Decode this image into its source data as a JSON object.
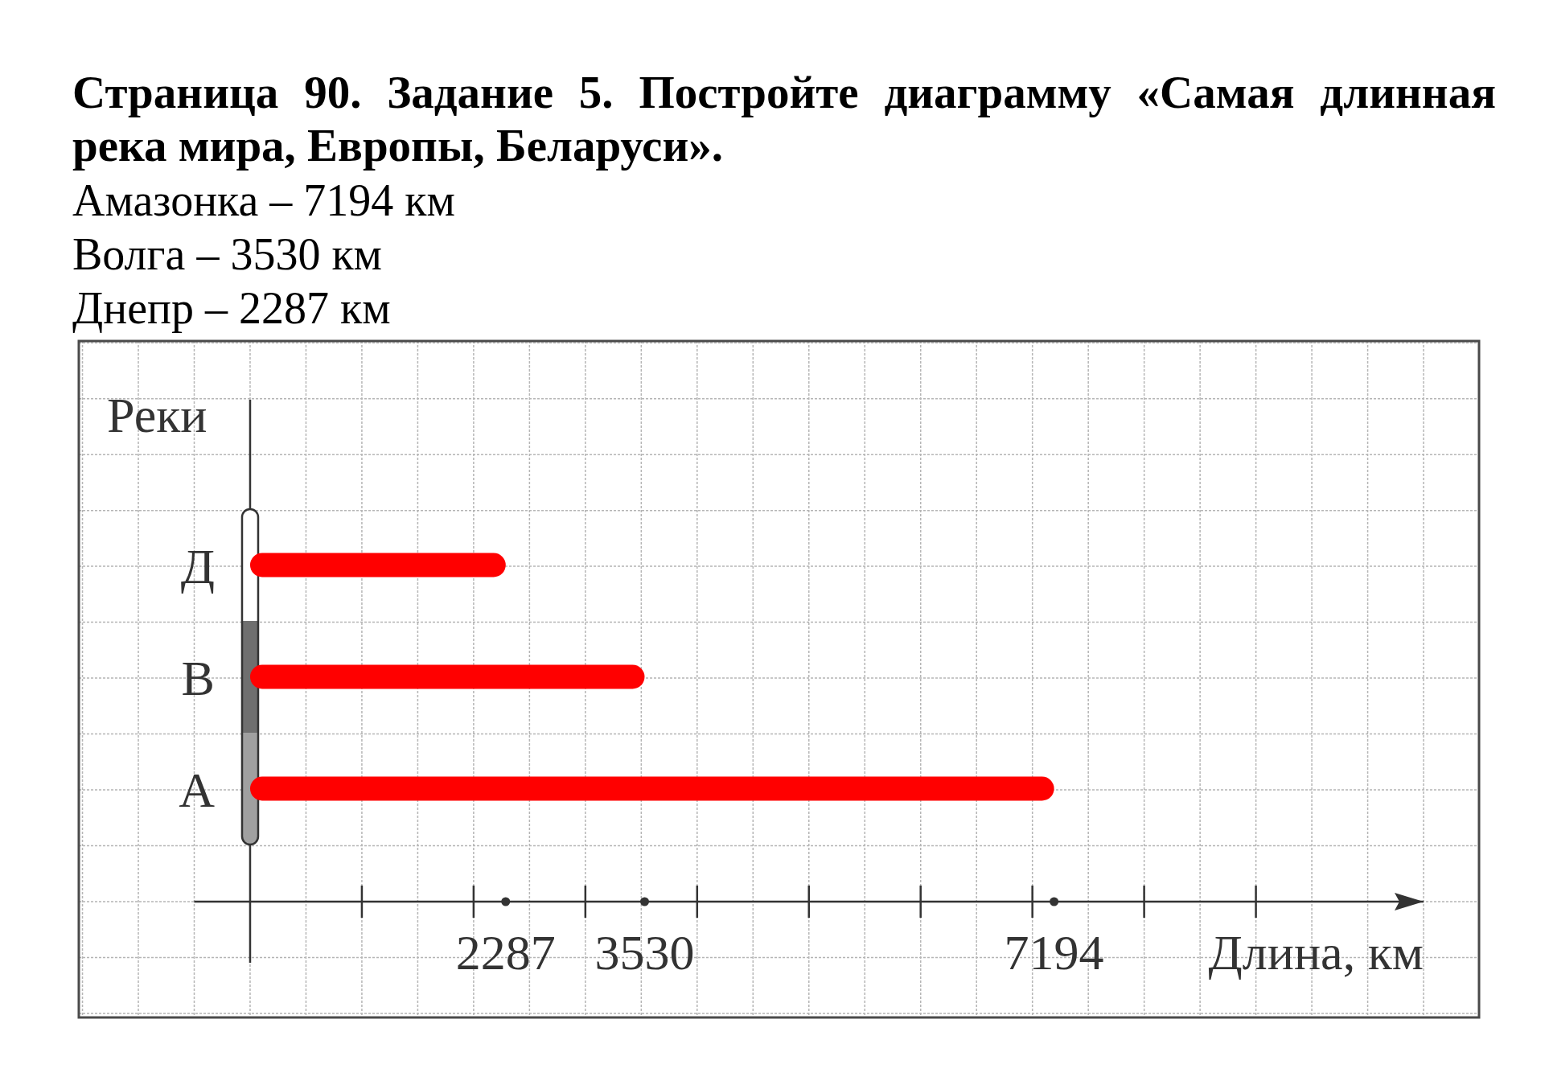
{
  "chart_data": {
    "type": "bar",
    "orientation": "horizontal",
    "title": "Страница 90. Задание 5. Постройте диаграмму «Самая длинная река мира, Европы, Беларуси».",
    "annotations": [
      "Амазонка – 7194 км",
      "Волга – 3530 км",
      "Днепр – 2287 км"
    ],
    "categories": [
      "Д",
      "В",
      "А"
    ],
    "values": [
      2287,
      3530,
      7194
    ],
    "color": "#ff0000",
    "xlim": [
      -500,
      10500
    ],
    "xticks": [
      {
        "value": 1000,
        "label": null
      },
      {
        "value": 2000,
        "label": null
      },
      2287,
      {
        "value": 3000,
        "label": null
      },
      3530,
      {
        "value": 4000,
        "label": null
      },
      {
        "value": 5000,
        "label": null
      },
      {
        "value": 6000,
        "label": null
      },
      {
        "value": 7000,
        "label": null
      },
      7194,
      {
        "value": 8000,
        "label": null
      },
      {
        "value": 9000,
        "label": null
      }
    ],
    "xlabel": "Длина, км",
    "ylabel": "Реки",
    "grid": true
  }
}
